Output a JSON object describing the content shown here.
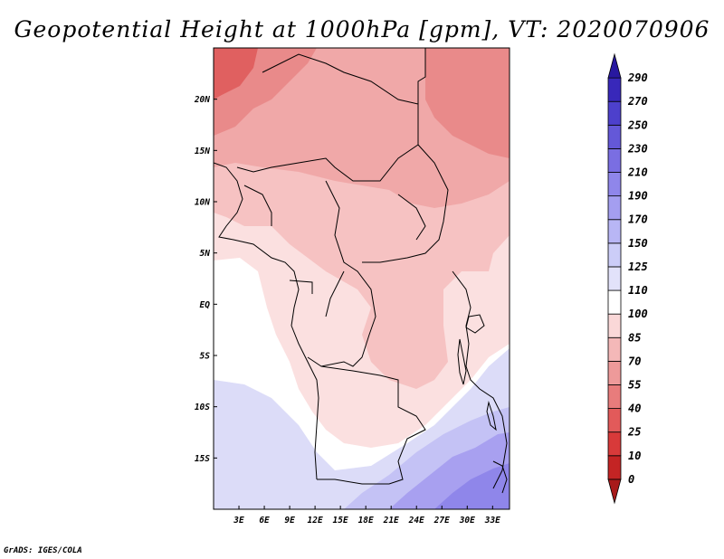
{
  "title": "Geopotential Height at 1000hPa [gpm], VT: 2020070906",
  "credit": "GrADS: IGES/COLA",
  "map": {
    "lon_range": [
      0,
      35
    ],
    "lat_range": [
      -20,
      25
    ],
    "x_ticks": [
      "3E",
      "6E",
      "9E",
      "12E",
      "15E",
      "18E",
      "21E",
      "24E",
      "27E",
      "30E",
      "33E"
    ],
    "y_ticks": [
      "20N",
      "15N",
      "10N",
      "5N",
      "EQ",
      "5S",
      "10S",
      "15S"
    ]
  },
  "colorbar": {
    "levels": [
      "0",
      "10",
      "25",
      "40",
      "55",
      "70",
      "85",
      "100",
      "110",
      "125",
      "150",
      "170",
      "190",
      "210",
      "230",
      "250",
      "270",
      "290"
    ],
    "colors": [
      "#a81a1a",
      "#c42424",
      "#d83a3a",
      "#e25a5a",
      "#e87c7c",
      "#ee9a9a",
      "#f4b8b8",
      "#fad8d8",
      "#ffffff",
      "#e2e2fa",
      "#cccdf8",
      "#b8b6f5",
      "#a49ef0",
      "#8f86ea",
      "#7a6ee2",
      "#6458d8",
      "#4d40cc",
      "#3828ba",
      "#2818a0"
    ]
  }
}
